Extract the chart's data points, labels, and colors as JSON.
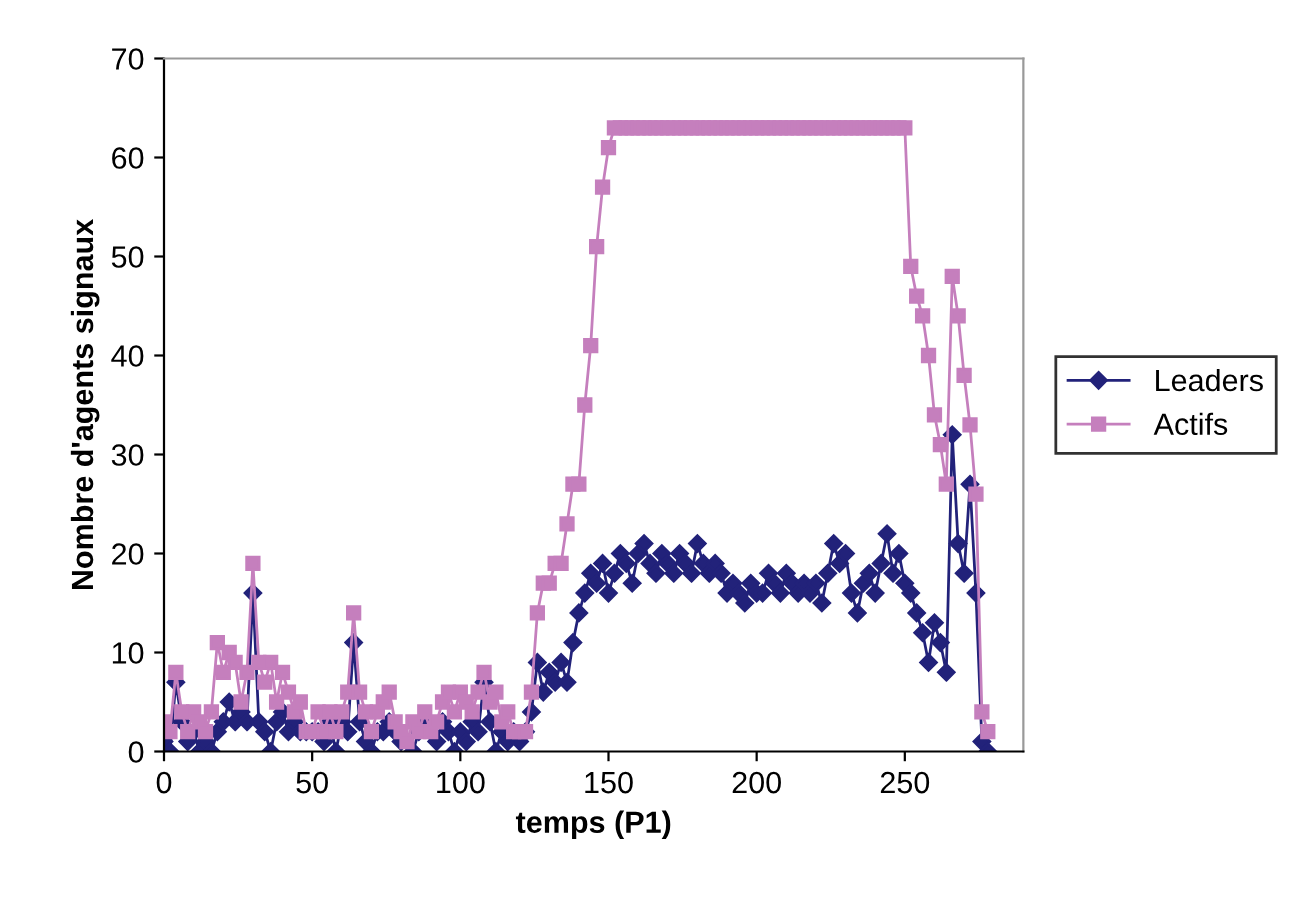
{
  "chart_data": {
    "type": "line",
    "xlabel": "temps (P1)",
    "ylabel": "Nombre d'agents signaux",
    "x": [
      0,
      2,
      4,
      6,
      8,
      10,
      12,
      14,
      16,
      18,
      20,
      22,
      24,
      26,
      28,
      30,
      32,
      34,
      36,
      38,
      40,
      42,
      44,
      46,
      48,
      50,
      52,
      54,
      56,
      58,
      60,
      62,
      64,
      66,
      68,
      70,
      72,
      74,
      76,
      78,
      80,
      82,
      84,
      86,
      88,
      90,
      92,
      94,
      96,
      98,
      100,
      102,
      104,
      106,
      108,
      110,
      112,
      114,
      116,
      118,
      120,
      122,
      124,
      126,
      128,
      130,
      132,
      134,
      136,
      138,
      140,
      142,
      144,
      146,
      148,
      150,
      152,
      154,
      156,
      158,
      160,
      162,
      164,
      166,
      168,
      170,
      172,
      174,
      176,
      178,
      180,
      182,
      184,
      186,
      188,
      190,
      192,
      194,
      196,
      198,
      200,
      202,
      204,
      206,
      208,
      210,
      212,
      214,
      216,
      218,
      220,
      222,
      224,
      226,
      228,
      230,
      232,
      234,
      236,
      238,
      240,
      242,
      244,
      246,
      248,
      250,
      252,
      254,
      256,
      258,
      260,
      262,
      264,
      266,
      268,
      270,
      272,
      274,
      276,
      278
    ],
    "series": [
      {
        "name": "Leaders",
        "color": "#22227a",
        "marker": "diamond",
        "values": [
          1,
          0,
          7,
          3,
          1,
          2,
          0,
          1,
          0,
          2,
          3,
          5,
          3,
          4,
          3,
          16,
          3,
          2,
          0,
          3,
          4,
          2,
          3,
          2,
          2,
          2,
          2,
          1,
          3,
          0,
          3,
          2,
          11,
          3,
          1,
          0,
          2,
          2,
          3,
          2,
          1,
          null,
          0,
          2,
          3,
          2,
          1,
          3,
          2,
          0,
          2,
          1,
          3,
          2,
          7,
          3,
          0,
          2,
          1,
          2,
          1,
          2,
          4,
          9,
          6,
          8,
          7,
          9,
          7,
          11,
          14,
          16,
          18,
          17,
          19,
          16,
          18,
          20,
          19,
          17,
          20,
          21,
          19,
          18,
          20,
          19,
          18,
          20,
          19,
          18,
          21,
          19,
          18,
          19,
          18,
          16,
          17,
          16,
          15,
          17,
          16,
          16,
          18,
          17,
          16,
          18,
          17,
          16,
          17,
          16,
          17,
          15,
          18,
          21,
          19,
          20,
          16,
          14,
          17,
          18,
          16,
          19,
          22,
          18,
          20,
          17,
          16,
          14,
          12,
          9,
          13,
          11,
          8,
          32,
          21,
          18,
          27,
          16,
          1,
          0
        ]
      },
      {
        "name": "Actifs",
        "color": "#c57fbd",
        "marker": "square",
        "values": [
          3,
          2,
          8,
          4,
          2,
          4,
          3,
          2,
          4,
          11,
          8,
          10,
          9,
          5,
          8,
          19,
          9,
          7,
          9,
          5,
          8,
          6,
          4,
          5,
          2,
          2,
          4,
          2,
          4,
          2,
          4,
          6,
          14,
          6,
          4,
          2,
          4,
          5,
          6,
          3,
          2,
          1,
          3,
          2,
          4,
          2,
          3,
          5,
          6,
          4,
          6,
          5,
          4,
          6,
          8,
          5,
          6,
          3,
          4,
          2,
          2,
          2,
          6,
          14,
          17,
          17,
          19,
          19,
          23,
          27,
          27,
          35,
          41,
          51,
          57,
          61,
          63,
          63,
          63,
          63,
          63,
          63,
          63,
          63,
          63,
          63,
          63,
          63,
          63,
          63,
          63,
          63,
          63,
          63,
          63,
          63,
          63,
          63,
          63,
          63,
          63,
          63,
          63,
          63,
          63,
          63,
          63,
          63,
          63,
          63,
          63,
          63,
          63,
          63,
          63,
          63,
          63,
          63,
          63,
          63,
          63,
          63,
          63,
          63,
          63,
          63,
          49,
          46,
          44,
          40,
          34,
          31,
          27,
          48,
          44,
          38,
          33,
          26,
          4,
          2
        ]
      }
    ],
    "xlim": [
      0,
      290
    ],
    "xticks": [
      0,
      50,
      100,
      150,
      200,
      250
    ],
    "ylim": [
      0,
      70
    ],
    "yticks": [
      0,
      10,
      20,
      30,
      40,
      50,
      60,
      70
    ],
    "grid": false,
    "legend": "right",
    "line_style": "solid"
  }
}
